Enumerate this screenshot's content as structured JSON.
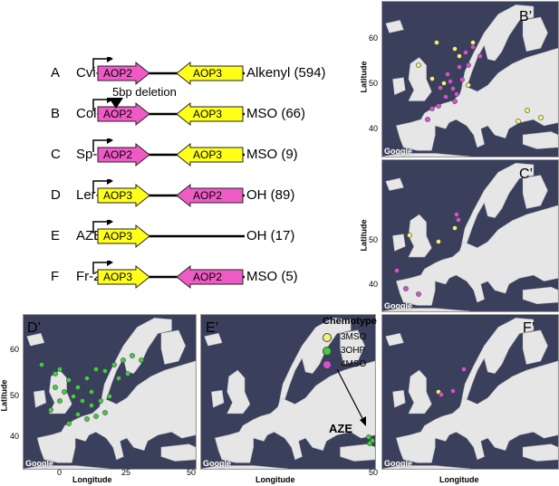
{
  "colors": {
    "aop2": "#ee5bc5",
    "aop3": "#ffff1a",
    "mso3": "#f3f07a",
    "ohp3": "#3fcf3f",
    "mso4": "#d84fd8",
    "sea": "#3a3f5c",
    "land": "#e6e6e6"
  },
  "rows": [
    {
      "letter": "A",
      "name": "Cvi-0",
      "genes": [
        "AOP2",
        "AOP3"
      ],
      "phenotype": "Alkenyl (594)"
    },
    {
      "letter": "B",
      "name": "Col-0",
      "genes": [
        "AOP2",
        "AOP3"
      ],
      "phenotype": "MSO (66)",
      "note": "5bp deletion"
    },
    {
      "letter": "C",
      "name": "Sp-0",
      "genes": [
        "AOP2",
        "AOP3"
      ],
      "phenotype": "MSO (9)"
    },
    {
      "letter": "D",
      "name": "Ler-0",
      "genes": [
        "AOP3",
        "AOP2"
      ],
      "phenotype": "OH (89)"
    },
    {
      "letter": "E",
      "name": "AZE",
      "genes": [
        "AOP3"
      ],
      "phenotype": "OH (17)"
    },
    {
      "letter": "F",
      "name": "Fr-2",
      "genes": [
        "AOP3",
        "AOP2"
      ],
      "phenotype": "MSO (5)"
    }
  ],
  "maps": {
    "b": {
      "label": "B’"
    },
    "c": {
      "label": "C’"
    },
    "d": {
      "label": "D’"
    },
    "e": {
      "label": "E’",
      "annotation": "AZE"
    },
    "f": {
      "label": "F’"
    }
  },
  "axes": {
    "latitude": "Latitude",
    "longitude": "Longitude",
    "lat_ticks": [
      "60",
      "50",
      "40"
    ],
    "lon_ticks": [
      "0",
      "25",
      "50"
    ]
  },
  "google": "Google",
  "legend": {
    "title": "Chemotype",
    "items": [
      {
        "label": "3MSO"
      },
      {
        "label": "3OHP"
      },
      {
        "label": "4MSO"
      }
    ]
  }
}
